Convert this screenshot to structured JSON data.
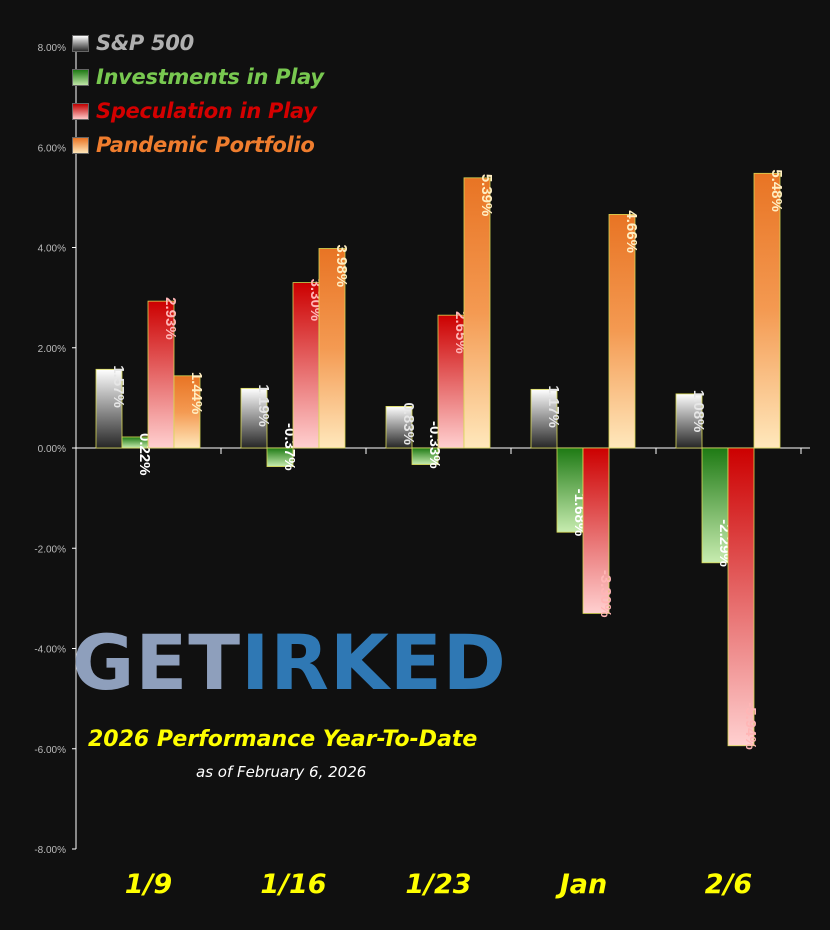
{
  "chart_data": {
    "type": "bar",
    "title": "2026 Performance Year-To-Date",
    "subtitle": "as of February 6, 2026",
    "xlabel": "",
    "ylabel": "",
    "categories": [
      "1/9",
      "1/16",
      "1/23",
      "Jan",
      "2/6"
    ],
    "ylim": [
      -8,
      8
    ],
    "yticks": [
      "8.00%",
      "6.00%",
      "4.00%",
      "2.00%",
      "0.00%",
      "-2.00%",
      "-4.00%",
      "-6.00%",
      "-8.00%"
    ],
    "ytick_values": [
      8,
      6,
      4,
      2,
      0,
      -2,
      -4,
      -6,
      -8
    ],
    "grid": false,
    "legend_position": "top-left",
    "series": [
      {
        "name": "S&P 500",
        "values": [
          1.57,
          1.19,
          0.83,
          1.17,
          1.08
        ],
        "labels": [
          "1.57%",
          "1.19%",
          "0.83%",
          "1.17%",
          "1.08%"
        ],
        "color": "#8a8a8a",
        "label_color": "#e6e6e6"
      },
      {
        "name": "Investments in Play",
        "values": [
          0.22,
          -0.37,
          -0.33,
          -1.68,
          -2.29
        ],
        "labels": [
          "0.22%",
          "-0.37%",
          "-0.33%",
          "-1.68%",
          "-2.29%"
        ],
        "color": "#3fa02a",
        "label_color": "#ffffff"
      },
      {
        "name": "Speculation in Play",
        "values": [
          2.93,
          3.3,
          2.65,
          -3.3,
          -5.94
        ],
        "labels": [
          "2.93%",
          "3.30%",
          "2.65%",
          "-3.30%",
          "-5.94%"
        ],
        "color": "#e00000",
        "label_color": "#ffb6b6"
      },
      {
        "name": "Pandemic Portfolio",
        "values": [
          1.44,
          3.98,
          5.39,
          4.66,
          5.48
        ],
        "labels": [
          "1.44%",
          "3.98%",
          "5.39%",
          "4.66%",
          "5.48%"
        ],
        "color": "#ef7d2e",
        "label_color": "#ffeec2"
      }
    ]
  },
  "legend": {
    "items": [
      {
        "label": "S&P 500",
        "color": "#b0b0b0"
      },
      {
        "label": "Investments in Play",
        "color": "#78c850"
      },
      {
        "label": "Speculation in Play",
        "color": "#d40000"
      },
      {
        "label": "Pandemic Portfolio",
        "color": "#ef7d2e"
      }
    ]
  },
  "logo": {
    "part1": "GET",
    "part2": "IRKED"
  },
  "colors": {
    "category_label": "#ffff00",
    "tick_label": "#bbbbbb",
    "axis": "#ffffff",
    "background": "#101010",
    "bar_border": "#d8d855"
  }
}
